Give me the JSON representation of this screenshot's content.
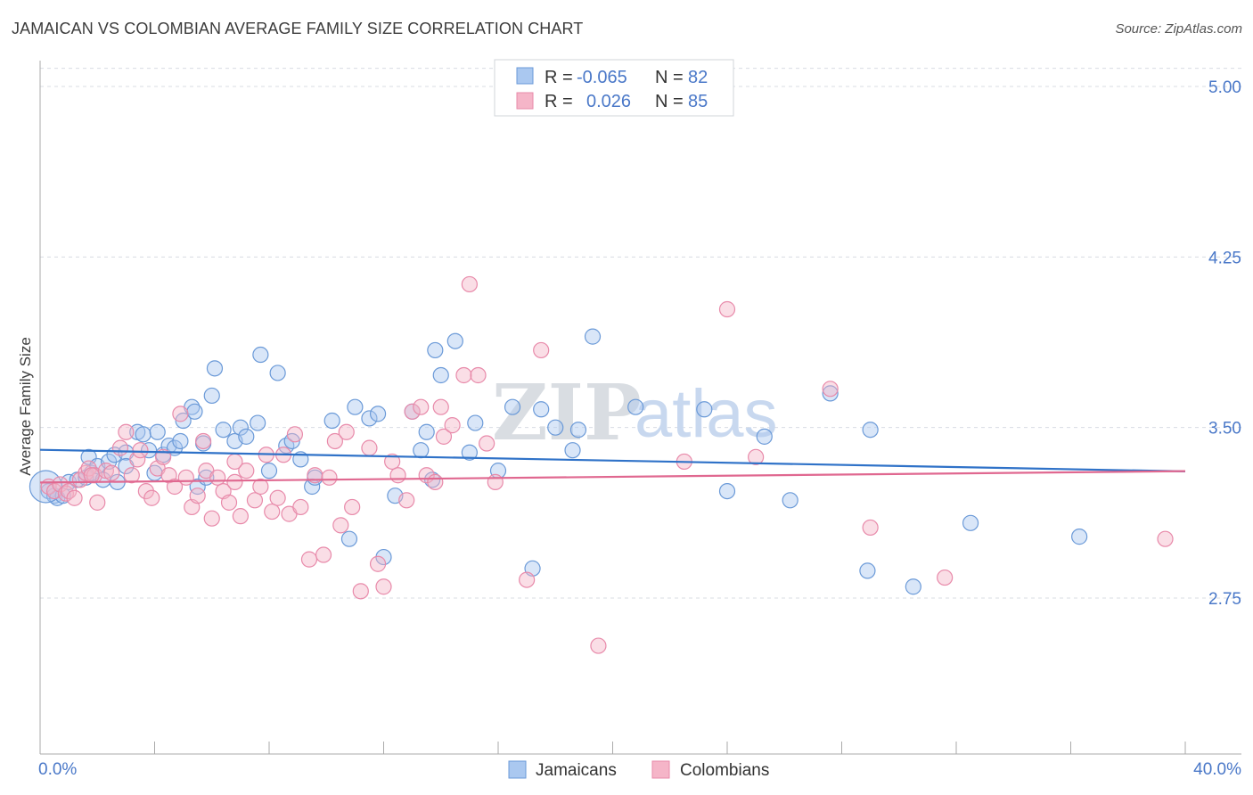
{
  "title": "JAMAICAN VS COLOMBIAN AVERAGE FAMILY SIZE CORRELATION CHART",
  "source": "Source: ZipAtlas.com",
  "watermark": {
    "zip": "ZIP",
    "atlas": "atlas"
  },
  "colors": {
    "blue": "#4a78c8",
    "blue_fill": "#aac8f0",
    "blue_stroke": "#6b9ad8",
    "blue_line": "#2f72c8",
    "pink": "#e87ca0",
    "pink_fill": "#f5b5c8",
    "pink_stroke": "#e88aaa",
    "pink_line": "#e06890",
    "grid": "#d8dce3",
    "axis": "#aaaaaa"
  },
  "stats_box": {
    "rows": [
      {
        "r_label": "R =",
        "r_value": "-0.065",
        "n_label": "N =",
        "n_value": "82",
        "color": "#4a78c8"
      },
      {
        "r_label": "R =",
        "r_value": "0.026",
        "n_label": "N =",
        "n_value": "85",
        "color": "#e87ca0"
      }
    ]
  },
  "chart_data": {
    "type": "scatter",
    "title": "JAMAICAN VS COLOMBIAN AVERAGE FAMILY SIZE CORRELATION CHART",
    "xlabel": "",
    "ylabel": "Average Family Size",
    "xlim": [
      0,
      40
    ],
    "ylim": [
      2.0,
      5.1
    ],
    "x_tick_labels": [
      "0.0%",
      "40.0%"
    ],
    "y_ticks": [
      2.75,
      3.5,
      4.25,
      5.0
    ],
    "y_tick_labels": [
      "2.75",
      "3.50",
      "4.25",
      "5.00"
    ],
    "grid": true,
    "legend_placement": "bottom-center",
    "series": [
      {
        "name": "Jamaicans",
        "color": "#4a78c8",
        "trend": {
          "x": [
            0,
            40
          ],
          "y": [
            3.402,
            3.307
          ]
        },
        "points": [
          [
            0.3,
            3.22
          ],
          [
            0.5,
            3.2
          ],
          [
            0.6,
            3.19
          ],
          [
            0.8,
            3.2
          ],
          [
            1.0,
            3.26
          ],
          [
            1.3,
            3.27
          ],
          [
            1.6,
            3.28
          ],
          [
            1.7,
            3.37
          ],
          [
            1.8,
            3.3
          ],
          [
            2.0,
            3.33
          ],
          [
            2.2,
            3.27
          ],
          [
            2.4,
            3.35
          ],
          [
            2.6,
            3.38
          ],
          [
            2.7,
            3.26
          ],
          [
            3.0,
            3.39
          ],
          [
            3.0,
            3.33
          ],
          [
            3.4,
            3.48
          ],
          [
            3.6,
            3.47
          ],
          [
            3.8,
            3.4
          ],
          [
            4.0,
            3.3
          ],
          [
            4.1,
            3.48
          ],
          [
            4.3,
            3.38
          ],
          [
            4.5,
            3.42
          ],
          [
            4.7,
            3.41
          ],
          [
            4.9,
            3.44
          ],
          [
            5.0,
            3.53
          ],
          [
            5.3,
            3.59
          ],
          [
            5.4,
            3.57
          ],
          [
            5.5,
            3.24
          ],
          [
            5.7,
            3.43
          ],
          [
            5.8,
            3.28
          ],
          [
            6.0,
            3.64
          ],
          [
            6.1,
            3.76
          ],
          [
            6.4,
            3.49
          ],
          [
            6.8,
            3.44
          ],
          [
            7.0,
            3.5
          ],
          [
            7.2,
            3.46
          ],
          [
            7.6,
            3.52
          ],
          [
            7.7,
            3.82
          ],
          [
            8.0,
            3.31
          ],
          [
            8.3,
            3.74
          ],
          [
            8.6,
            3.42
          ],
          [
            8.8,
            3.44
          ],
          [
            9.1,
            3.36
          ],
          [
            9.5,
            3.24
          ],
          [
            9.6,
            3.28
          ],
          [
            10.2,
            3.53
          ],
          [
            10.8,
            3.01
          ],
          [
            11.0,
            3.59
          ],
          [
            11.5,
            3.54
          ],
          [
            11.8,
            3.56
          ],
          [
            12.0,
            2.93
          ],
          [
            12.4,
            3.2
          ],
          [
            13.0,
            3.57
          ],
          [
            13.3,
            3.4
          ],
          [
            13.5,
            3.48
          ],
          [
            13.7,
            3.27
          ],
          [
            13.8,
            3.84
          ],
          [
            14.0,
            3.73
          ],
          [
            14.5,
            3.88
          ],
          [
            15.0,
            3.39
          ],
          [
            15.2,
            3.52
          ],
          [
            16.0,
            3.31
          ],
          [
            16.5,
            3.59
          ],
          [
            17.2,
            2.88
          ],
          [
            17.5,
            3.58
          ],
          [
            18.0,
            3.5
          ],
          [
            18.6,
            3.4
          ],
          [
            18.8,
            3.49
          ],
          [
            19.3,
            3.9
          ],
          [
            20.8,
            3.59
          ],
          [
            23.2,
            3.58
          ],
          [
            24.0,
            3.22
          ],
          [
            25.3,
            3.46
          ],
          [
            26.2,
            3.18
          ],
          [
            27.6,
            3.65
          ],
          [
            28.9,
            2.87
          ],
          [
            29.0,
            3.49
          ],
          [
            30.5,
            2.8
          ],
          [
            32.5,
            3.08
          ],
          [
            36.3,
            3.02
          ],
          [
            0.2,
            3.24
          ]
        ]
      },
      {
        "name": "Colombians",
        "color": "#e87ca0",
        "trend": {
          "x": [
            0,
            40
          ],
          "y": [
            3.258,
            3.308
          ]
        },
        "points": [
          [
            0.3,
            3.24
          ],
          [
            0.5,
            3.22
          ],
          [
            0.7,
            3.25
          ],
          [
            0.9,
            3.21
          ],
          [
            1.0,
            3.22
          ],
          [
            1.2,
            3.19
          ],
          [
            1.4,
            3.27
          ],
          [
            1.6,
            3.3
          ],
          [
            1.7,
            3.32
          ],
          [
            1.9,
            3.29
          ],
          [
            2.0,
            3.17
          ],
          [
            2.3,
            3.31
          ],
          [
            2.5,
            3.3
          ],
          [
            2.8,
            3.41
          ],
          [
            3.0,
            3.48
          ],
          [
            3.2,
            3.29
          ],
          [
            3.4,
            3.36
          ],
          [
            3.5,
            3.4
          ],
          [
            3.7,
            3.22
          ],
          [
            3.9,
            3.19
          ],
          [
            4.1,
            3.32
          ],
          [
            4.3,
            3.37
          ],
          [
            4.5,
            3.29
          ],
          [
            4.7,
            3.24
          ],
          [
            4.9,
            3.56
          ],
          [
            5.1,
            3.28
          ],
          [
            5.3,
            3.15
          ],
          [
            5.5,
            3.2
          ],
          [
            5.7,
            3.44
          ],
          [
            5.8,
            3.31
          ],
          [
            6.0,
            3.1
          ],
          [
            6.2,
            3.28
          ],
          [
            6.4,
            3.22
          ],
          [
            6.6,
            3.17
          ],
          [
            6.8,
            3.26
          ],
          [
            7.0,
            3.11
          ],
          [
            7.2,
            3.31
          ],
          [
            7.5,
            3.18
          ],
          [
            7.7,
            3.24
          ],
          [
            7.9,
            3.38
          ],
          [
            8.1,
            3.13
          ],
          [
            8.3,
            3.19
          ],
          [
            8.5,
            3.38
          ],
          [
            8.7,
            3.12
          ],
          [
            8.9,
            3.47
          ],
          [
            9.1,
            3.15
          ],
          [
            9.4,
            2.92
          ],
          [
            9.6,
            3.29
          ],
          [
            9.9,
            2.94
          ],
          [
            10.1,
            3.28
          ],
          [
            10.3,
            3.44
          ],
          [
            10.5,
            3.07
          ],
          [
            10.7,
            3.48
          ],
          [
            10.9,
            3.15
          ],
          [
            11.2,
            2.78
          ],
          [
            11.5,
            3.41
          ],
          [
            11.8,
            2.9
          ],
          [
            12.0,
            2.8
          ],
          [
            12.3,
            3.35
          ],
          [
            12.5,
            3.29
          ],
          [
            12.8,
            3.18
          ],
          [
            13.0,
            3.57
          ],
          [
            13.3,
            3.59
          ],
          [
            13.5,
            3.29
          ],
          [
            13.8,
            3.26
          ],
          [
            14.1,
            3.46
          ],
          [
            14.4,
            3.51
          ],
          [
            14.8,
            3.73
          ],
          [
            15.0,
            4.13
          ],
          [
            15.3,
            3.73
          ],
          [
            15.6,
            3.43
          ],
          [
            15.9,
            3.26
          ],
          [
            17.0,
            2.83
          ],
          [
            17.5,
            3.84
          ],
          [
            19.5,
            2.54
          ],
          [
            22.5,
            3.35
          ],
          [
            24.0,
            4.02
          ],
          [
            25.0,
            3.37
          ],
          [
            27.6,
            3.67
          ],
          [
            29.0,
            3.06
          ],
          [
            31.6,
            2.84
          ],
          [
            39.3,
            3.01
          ],
          [
            1.8,
            3.29
          ],
          [
            6.8,
            3.35
          ],
          [
            14.0,
            3.59
          ]
        ]
      }
    ]
  }
}
